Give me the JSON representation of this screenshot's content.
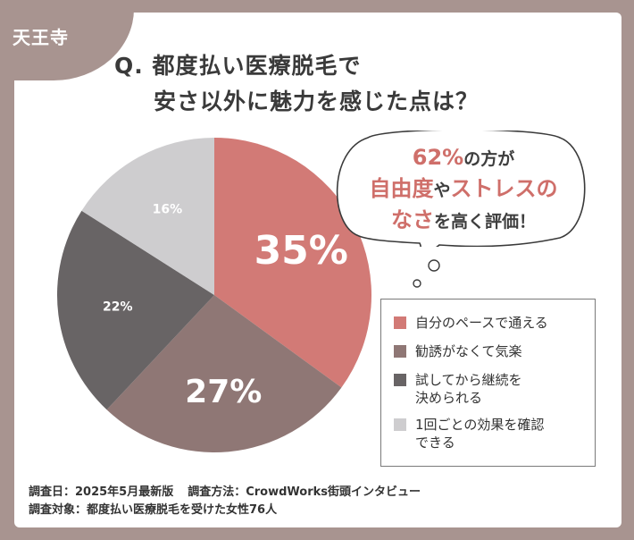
{
  "header": {
    "area": "天王寺",
    "question_line1": "Q. 都度払い医療脱毛で",
    "question_line2": "安さ以外に魅力を感じた点は？"
  },
  "callout": {
    "percent": "62%",
    "part1": "の方が",
    "highlight1": "自由度",
    "part2": "や",
    "highlight2": "ストレスの",
    "highlight3": "なさ",
    "part3": "を高く評価！"
  },
  "chart_data": {
    "type": "pie",
    "categories": [
      "自分のペースで通える",
      "勧誘がなくて気楽",
      "試してから継続を決められる",
      "1回ごとの効果を確認できる"
    ],
    "values": [
      35,
      27,
      22,
      16
    ],
    "data_labels": [
      "35%",
      "27%",
      "22%",
      "16%"
    ],
    "colors": [
      "#d27a76",
      "#8f7775",
      "#686465",
      "#cecdcf"
    ],
    "legend_position": "right"
  },
  "legend": {
    "items": [
      {
        "line1": "自分のペースで通える",
        "line2": "",
        "color": "#d27a76"
      },
      {
        "line1": "勧誘がなくて気楽",
        "line2": "",
        "color": "#8f7775"
      },
      {
        "line1": "試してから継続を",
        "line2": "決められる",
        "color": "#686465"
      },
      {
        "line1": "1回ごとの効果を確認",
        "line2": "できる",
        "color": "#cecdcf"
      }
    ]
  },
  "footer": {
    "date": "調査日：2025年5月最新版",
    "method": "調査方法：CrowdWorks街頭インタビュー",
    "subject": "調査対象：都度払い医療脱毛を受けた女性76人"
  }
}
